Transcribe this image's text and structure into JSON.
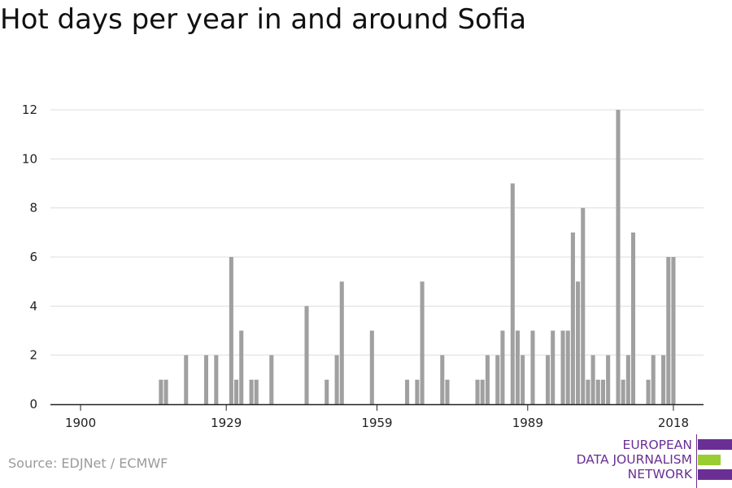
{
  "title": "Hot days per year in and around Sofia",
  "source": "Source: EDJNet / ECMWF",
  "logo": {
    "lines": [
      "EUROPEAN",
      "DATA JOURNALISM",
      "NETWORK"
    ],
    "bar_colors": [
      "#6a2f94",
      "#9acd32",
      "#6a2f94"
    ]
  },
  "colors": {
    "bar": "#a0a0a0",
    "grid": "#dddddd",
    "axis": "#222222"
  },
  "chart_data": {
    "type": "bar",
    "title": "Hot days per year in and around Sofia",
    "xlabel": "",
    "ylabel": "",
    "xlim": [
      1894,
      2024
    ],
    "ylim": [
      0,
      12
    ],
    "yticks": [
      0,
      2,
      4,
      6,
      8,
      10,
      12
    ],
    "xticks": [
      1900,
      1929,
      1959,
      1989,
      2018
    ],
    "grid": true,
    "x": [
      1916,
      1917,
      1921,
      1925,
      1927,
      1930,
      1931,
      1932,
      1934,
      1935,
      1938,
      1945,
      1949,
      1951,
      1952,
      1958,
      1965,
      1967,
      1968,
      1972,
      1973,
      1979,
      1980,
      1981,
      1983,
      1984,
      1986,
      1987,
      1988,
      1990,
      1993,
      1994,
      1996,
      1997,
      1998,
      1999,
      2000,
      2001,
      2002,
      2003,
      2004,
      2005,
      2007,
      2008,
      2009,
      2010,
      2013,
      2014,
      2016,
      2017,
      2018
    ],
    "values": [
      1,
      1,
      2,
      2,
      2,
      6,
      1,
      3,
      1,
      1,
      2,
      4,
      1,
      2,
      5,
      3,
      1,
      1,
      5,
      2,
      1,
      1,
      1,
      2,
      2,
      3,
      9,
      3,
      2,
      3,
      2,
      3,
      3,
      3,
      7,
      5,
      8,
      1,
      2,
      1,
      1,
      2,
      12,
      1,
      2,
      7,
      1,
      2,
      2,
      6,
      6
    ]
  }
}
